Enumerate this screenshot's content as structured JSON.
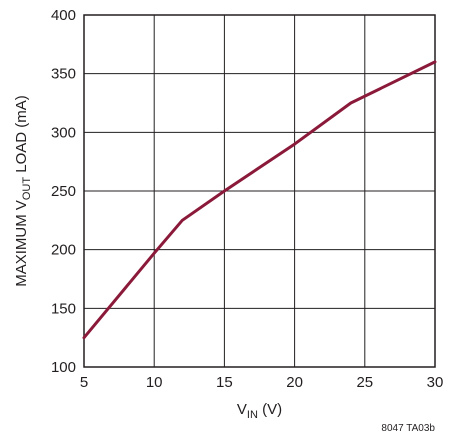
{
  "chart_data": {
    "type": "line",
    "title": "",
    "xlabel": {
      "main": "V",
      "sub": "IN",
      "suffix": " (V)"
    },
    "ylabel": {
      "prefix": "MAXIMUM V",
      "sub": "OUT",
      "suffix": " LOAD (mA)"
    },
    "xlim": [
      5,
      30
    ],
    "ylim": [
      100,
      400
    ],
    "xticks": [
      5,
      10,
      15,
      20,
      25,
      30
    ],
    "yticks": [
      100,
      150,
      200,
      250,
      300,
      350,
      400
    ],
    "grid": true,
    "series": [
      {
        "color": "#8b1a3a",
        "x": [
          5,
          10,
          12,
          15,
          20,
          24,
          30
        ],
        "y": [
          125,
          197,
          225,
          250,
          290,
          325,
          360
        ]
      }
    ]
  },
  "figure_id": "8047 TA03b"
}
